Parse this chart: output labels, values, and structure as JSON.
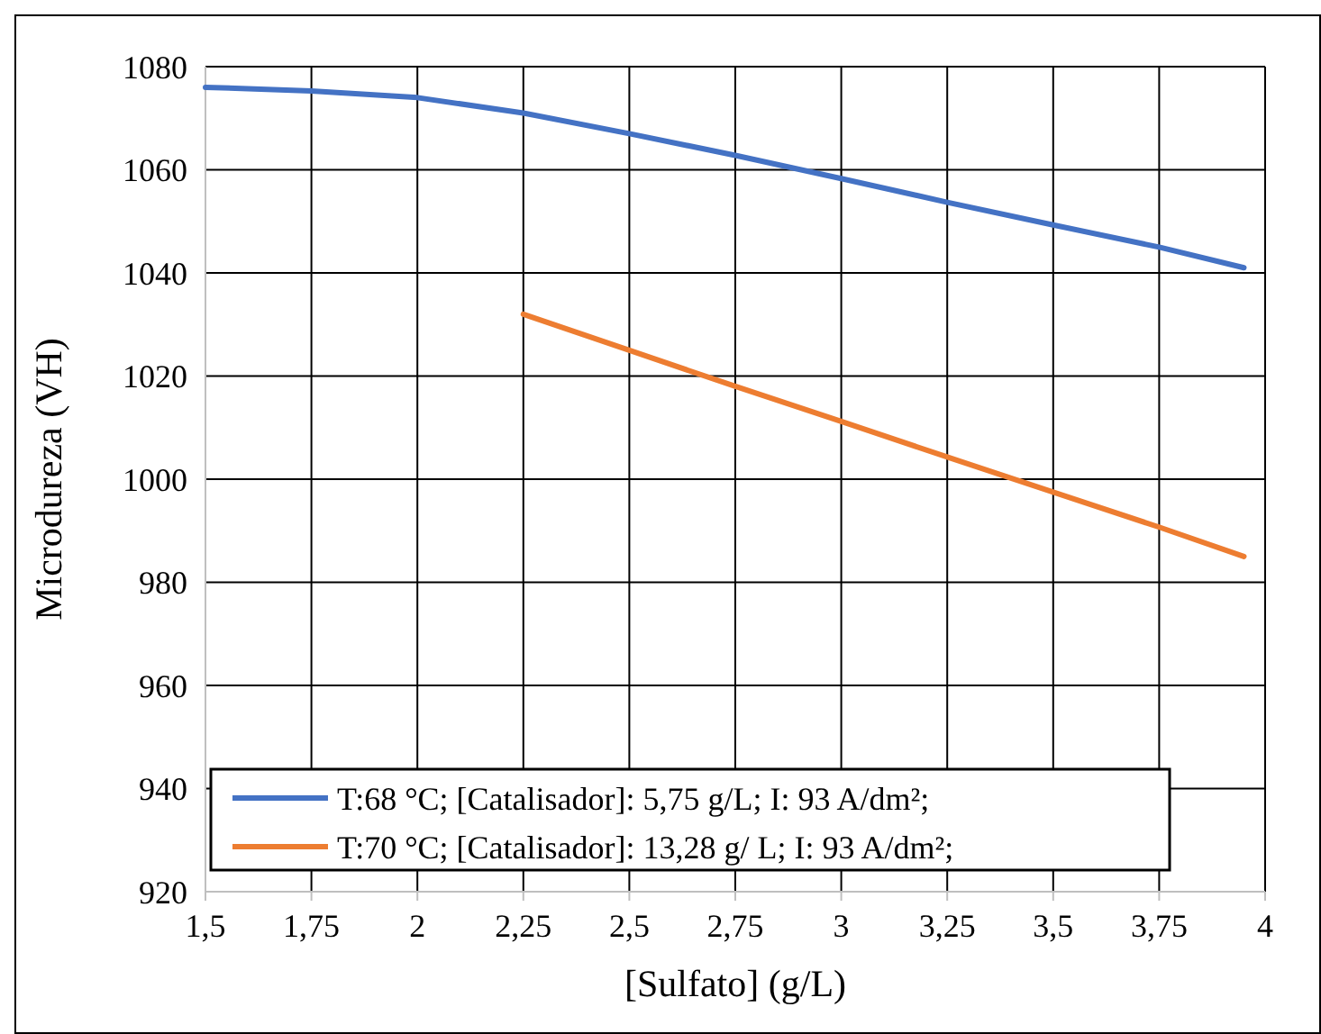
{
  "chart_data": {
    "type": "line",
    "xlabel": "[Sulfato] (g/L)",
    "ylabel": "Microdureza (VH)",
    "xlim": [
      1.5,
      4
    ],
    "xticks": [
      {
        "value": 1.5,
        "label": "1,5"
      },
      {
        "value": 1.75,
        "label": "1,75"
      },
      {
        "value": 2,
        "label": "2"
      },
      {
        "value": 2.25,
        "label": "2,25"
      },
      {
        "value": 2.5,
        "label": "2,5"
      },
      {
        "value": 2.75,
        "label": "2,75"
      },
      {
        "value": 3,
        "label": "3"
      },
      {
        "value": 3.25,
        "label": "3,25"
      },
      {
        "value": 3.5,
        "label": "3,5"
      },
      {
        "value": 3.75,
        "label": "3,75"
      },
      {
        "value": 4,
        "label": "4"
      }
    ],
    "ylim": [
      920,
      1080
    ],
    "yticks": [
      920,
      940,
      960,
      980,
      1000,
      1020,
      1040,
      1060,
      1080
    ],
    "grid": true,
    "legend": "bottom",
    "line_style": "solid",
    "series": [
      {
        "name": "T:68 °C; [Catalisador]: 5,75 g/L; I: 93 A/dm²;",
        "color": "#4472c4",
        "x": [
          1.5,
          1.75,
          2,
          2.25,
          2.5,
          2.75,
          3,
          3.25,
          3.5,
          3.75,
          3.95
        ],
        "values": [
          1076,
          1075.3,
          1074,
          1071,
          1067,
          1062.8,
          1058.3,
          1053.7,
          1049.3,
          1045,
          1041
        ]
      },
      {
        "name": "T:70 °C; [Catalisador]: 13,28 g/ L; I: 93 A/dm²;",
        "color": "#ed7d31",
        "x": [
          2.25,
          2.5,
          2.75,
          3,
          3.25,
          3.5,
          3.75,
          3.95
        ],
        "values": [
          1032,
          1025,
          1018,
          1011.2,
          1004.3,
          997.5,
          990.7,
          985
        ]
      }
    ]
  }
}
